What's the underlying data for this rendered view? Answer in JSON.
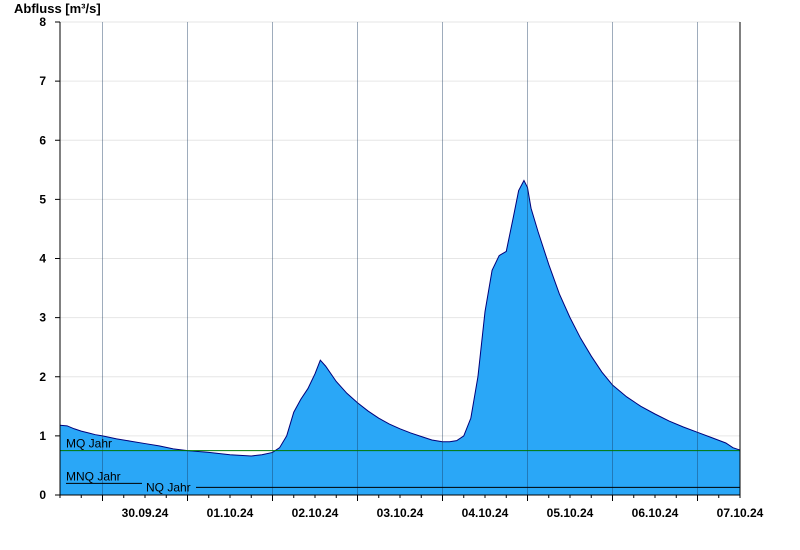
{
  "chart_data": {
    "type": "area",
    "ylabel": "Abfluss [m³/s]",
    "xlabel": "",
    "title": "",
    "ylim": [
      0,
      8
    ],
    "yticks": [
      "0",
      "1",
      "2",
      "3",
      "4",
      "5",
      "6",
      "7",
      "8"
    ],
    "x_start": "2024-09-29T12:00",
    "x_end": "2024-10-07T12:00",
    "day_labels": [
      {
        "date": "2024-09-30",
        "label": "30.09.24"
      },
      {
        "date": "2024-10-01",
        "label": "01.10.24"
      },
      {
        "date": "2024-10-02",
        "label": "02.10.24"
      },
      {
        "date": "2024-10-03",
        "label": "03.10.24"
      },
      {
        "date": "2024-10-04",
        "label": "04.10.24"
      },
      {
        "date": "2024-10-05",
        "label": "05.10.24"
      },
      {
        "date": "2024-10-06",
        "label": "06.10.24"
      },
      {
        "date": "2024-10-07",
        "label": "07.10.24"
      }
    ],
    "grid": true,
    "colors": {
      "fill": "#2aa7f7",
      "line": "#00007a",
      "mq": "#007700",
      "mnq": "#000000",
      "nq": "#000000",
      "grid": "#e6e6e6"
    },
    "reference_lines": [
      {
        "name": "MQ",
        "label": "MQ Jahr",
        "value": 0.75
      },
      {
        "name": "MNQ",
        "label": "MNQ Jahr",
        "value": 0.13
      },
      {
        "name": "NQ",
        "label": "NQ Jahr",
        "value": 0.13
      }
    ],
    "series": [
      {
        "points": [
          [
            "2024-09-29T12:00",
            1.18
          ],
          [
            "2024-09-29T14:00",
            1.17
          ],
          [
            "2024-09-29T16:00",
            1.12
          ],
          [
            "2024-09-29T18:00",
            1.08
          ],
          [
            "2024-09-29T20:00",
            1.05
          ],
          [
            "2024-09-29T22:00",
            1.02
          ],
          [
            "2024-09-30T00:00",
            1.0
          ],
          [
            "2024-09-30T04:00",
            0.95
          ],
          [
            "2024-09-30T08:00",
            0.91
          ],
          [
            "2024-09-30T12:00",
            0.87
          ],
          [
            "2024-09-30T16:00",
            0.83
          ],
          [
            "2024-09-30T20:00",
            0.78
          ],
          [
            "2024-10-01T00:00",
            0.75
          ],
          [
            "2024-10-01T06:00",
            0.72
          ],
          [
            "2024-10-01T12:00",
            0.68
          ],
          [
            "2024-10-01T18:00",
            0.66
          ],
          [
            "2024-10-01T21:00",
            0.68
          ],
          [
            "2024-10-02T00:00",
            0.72
          ],
          [
            "2024-10-02T02:00",
            0.8
          ],
          [
            "2024-10-02T04:00",
            1.0
          ],
          [
            "2024-10-02T06:00",
            1.4
          ],
          [
            "2024-10-02T08:00",
            1.62
          ],
          [
            "2024-10-02T10:00",
            1.8
          ],
          [
            "2024-10-02T12:00",
            2.05
          ],
          [
            "2024-10-02T13:30",
            2.28
          ],
          [
            "2024-10-02T15:00",
            2.18
          ],
          [
            "2024-10-02T18:00",
            1.92
          ],
          [
            "2024-10-02T21:00",
            1.72
          ],
          [
            "2024-10-03T00:00",
            1.56
          ],
          [
            "2024-10-03T03:00",
            1.42
          ],
          [
            "2024-10-03T06:00",
            1.3
          ],
          [
            "2024-10-03T09:00",
            1.2
          ],
          [
            "2024-10-03T12:00",
            1.12
          ],
          [
            "2024-10-03T15:00",
            1.05
          ],
          [
            "2024-10-03T18:00",
            0.99
          ],
          [
            "2024-10-03T21:00",
            0.93
          ],
          [
            "2024-10-04T00:00",
            0.9
          ],
          [
            "2024-10-04T02:00",
            0.9
          ],
          [
            "2024-10-04T04:00",
            0.92
          ],
          [
            "2024-10-04T06:00",
            1.0
          ],
          [
            "2024-10-04T08:00",
            1.3
          ],
          [
            "2024-10-04T10:00",
            2.0
          ],
          [
            "2024-10-04T12:00",
            3.1
          ],
          [
            "2024-10-04T14:00",
            3.8
          ],
          [
            "2024-10-04T16:00",
            4.05
          ],
          [
            "2024-10-04T18:00",
            4.12
          ],
          [
            "2024-10-04T20:00",
            4.7
          ],
          [
            "2024-10-04T21:30",
            5.15
          ],
          [
            "2024-10-04T23:00",
            5.32
          ],
          [
            "2024-10-05T00:00",
            5.2
          ],
          [
            "2024-10-05T01:00",
            4.85
          ],
          [
            "2024-10-05T03:00",
            4.45
          ],
          [
            "2024-10-05T06:00",
            3.9
          ],
          [
            "2024-10-05T09:00",
            3.4
          ],
          [
            "2024-10-05T12:00",
            3.0
          ],
          [
            "2024-10-05T15:00",
            2.65
          ],
          [
            "2024-10-05T18:00",
            2.35
          ],
          [
            "2024-10-05T21:00",
            2.08
          ],
          [
            "2024-10-06T00:00",
            1.86
          ],
          [
            "2024-10-06T04:00",
            1.66
          ],
          [
            "2024-10-06T08:00",
            1.5
          ],
          [
            "2024-10-06T12:00",
            1.37
          ],
          [
            "2024-10-06T16:00",
            1.25
          ],
          [
            "2024-10-06T20:00",
            1.15
          ],
          [
            "2024-10-07T00:00",
            1.06
          ],
          [
            "2024-10-07T04:00",
            0.97
          ],
          [
            "2024-10-07T08:00",
            0.88
          ],
          [
            "2024-10-07T10:00",
            0.8
          ],
          [
            "2024-10-07T12:00",
            0.76
          ]
        ]
      }
    ]
  }
}
